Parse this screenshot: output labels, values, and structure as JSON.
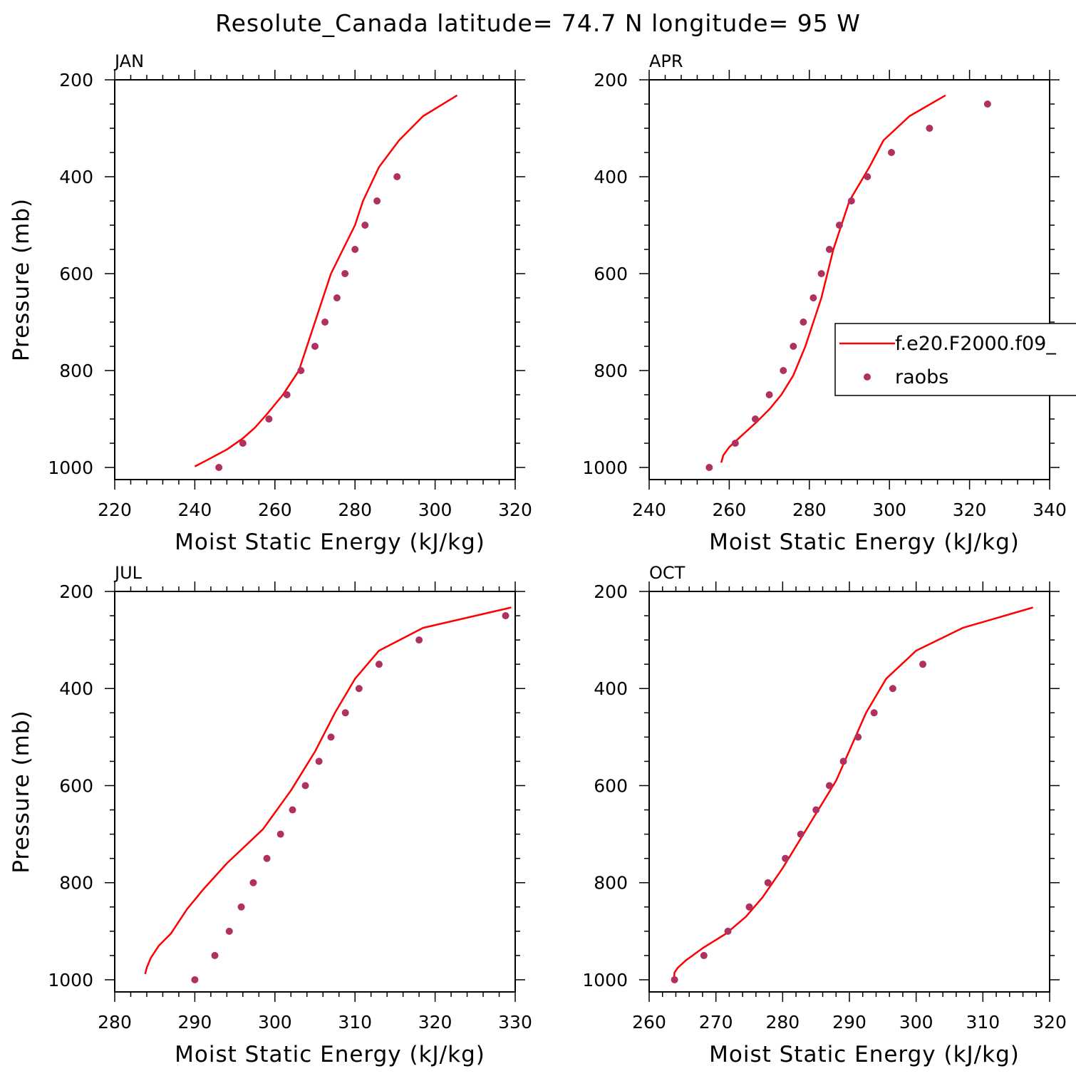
{
  "title": "Resolute_Canada  latitude= 74.7 N longitude= 95 W",
  "colors": {
    "model_line": "#ff0000",
    "obs_marker": "#b03060",
    "axes": "#000000"
  },
  "chart_data": [
    {
      "type": "line",
      "panel_label": "JAN",
      "xlabel": "Moist Static Energy (kJ/kg)",
      "ylabel": "Pressure (mb)",
      "xlim": [
        220,
        320
      ],
      "ylim": [
        1025,
        200
      ],
      "y_reversed": true,
      "x_ticks": [
        220,
        240,
        260,
        280,
        300,
        320
      ],
      "y_ticks": [
        200,
        400,
        600,
        800,
        1000
      ],
      "series": [
        {
          "name": "f.e20.F2000.f09_",
          "kind": "line",
          "x": [
            240,
            243,
            248,
            252,
            255,
            258,
            262,
            266,
            270,
            274,
            277,
            280,
            282,
            286,
            291,
            297,
            305.5
          ],
          "y": [
            998,
            985,
            963,
            940,
            918,
            890,
            850,
            800,
            700,
            600,
            550,
            500,
            450,
            380,
            325,
            275,
            232
          ]
        },
        {
          "name": "raobs",
          "kind": "scatter",
          "x": [
            246,
            252,
            258.5,
            263,
            266.5,
            270,
            272.5,
            275.5,
            277.5,
            280,
            282.5,
            285.5,
            290.5
          ],
          "y": [
            1000,
            950,
            900,
            850,
            800,
            750,
            700,
            650,
            600,
            550,
            500,
            450,
            400
          ]
        }
      ]
    },
    {
      "type": "line",
      "panel_label": "APR",
      "xlabel": "Moist Static Energy (kJ/kg)",
      "ylabel": "",
      "xlim": [
        240,
        340
      ],
      "ylim": [
        1025,
        200
      ],
      "y_reversed": true,
      "x_ticks": [
        240,
        260,
        280,
        300,
        320,
        340
      ],
      "y_ticks": [
        200,
        400,
        600,
        800,
        1000
      ],
      "series": [
        {
          "name": "f.e20.F2000.f09_",
          "kind": "line",
          "x": [
            258,
            258.5,
            260,
            263,
            267,
            270,
            273,
            276,
            279,
            283,
            286,
            290,
            295,
            298.5,
            305,
            314
          ],
          "y": [
            990,
            975,
            958,
            935,
            905,
            880,
            850,
            810,
            750,
            650,
            550,
            450,
            380,
            325,
            275,
            232
          ]
        },
        {
          "name": "raobs",
          "kind": "scatter",
          "x": [
            255,
            261.5,
            266.5,
            270,
            273.5,
            276,
            278.5,
            281,
            283,
            285,
            287.5,
            290.5,
            294.5,
            300.5,
            310,
            324.5
          ],
          "y": [
            1000,
            950,
            900,
            850,
            800,
            750,
            700,
            650,
            600,
            550,
            500,
            450,
            400,
            350,
            300,
            250
          ]
        }
      ]
    },
    {
      "type": "line",
      "panel_label": "JUL",
      "xlabel": "Moist Static Energy (kJ/kg)",
      "ylabel": "Pressure (mb)",
      "xlim": [
        280,
        330
      ],
      "ylim": [
        1025,
        200
      ],
      "y_reversed": true,
      "x_ticks": [
        280,
        290,
        300,
        310,
        320,
        330
      ],
      "y_ticks": [
        200,
        400,
        600,
        800,
        1000
      ],
      "series": [
        {
          "name": "f.e20.F2000.f09_",
          "kind": "line",
          "x": [
            283.8,
            284,
            284.5,
            285.5,
            287,
            289,
            291,
            294,
            298.5,
            302,
            305,
            307.5,
            310,
            313,
            318.5,
            329.5
          ],
          "y": [
            988,
            975,
            955,
            930,
            905,
            855,
            815,
            760,
            690,
            610,
            530,
            450,
            380,
            322,
            275,
            233
          ]
        },
        {
          "name": "raobs",
          "kind": "scatter",
          "x": [
            290,
            292.5,
            294.3,
            295.8,
            297.3,
            299,
            300.7,
            302.2,
            303.8,
            305.5,
            307,
            308.8,
            310.5,
            313,
            318,
            328.8
          ],
          "y": [
            1000,
            950,
            900,
            850,
            800,
            750,
            700,
            650,
            600,
            550,
            500,
            450,
            400,
            350,
            300,
            250
          ]
        }
      ]
    },
    {
      "type": "line",
      "panel_label": "OCT",
      "xlabel": "Moist Static Energy (kJ/kg)",
      "ylabel": "",
      "xlim": [
        260,
        320
      ],
      "ylim": [
        1025,
        200
      ],
      "y_reversed": true,
      "x_ticks": [
        260,
        270,
        280,
        290,
        300,
        310,
        320
      ],
      "y_ticks": [
        200,
        400,
        600,
        800,
        1000
      ],
      "series": [
        {
          "name": "f.e20.F2000.f09_",
          "kind": "line",
          "x": [
            263.7,
            263.8,
            264.3,
            265.5,
            268,
            271.5,
            274.5,
            277,
            280,
            284,
            288,
            292.5,
            295.5,
            300,
            307,
            317.5
          ],
          "y": [
            1000,
            985,
            975,
            960,
            935,
            905,
            870,
            830,
            770,
            680,
            590,
            450,
            380,
            322,
            275,
            233
          ]
        },
        {
          "name": "raobs",
          "kind": "scatter",
          "x": [
            263.8,
            268.2,
            271.8,
            275,
            277.8,
            280.4,
            282.7,
            285,
            287,
            289.1,
            291.3,
            293.7,
            296.5,
            301
          ],
          "y": [
            1000,
            950,
            900,
            850,
            800,
            750,
            700,
            650,
            600,
            550,
            500,
            450,
            400,
            350
          ]
        }
      ]
    }
  ],
  "legend": {
    "placement": "right of APR panel",
    "entries": [
      {
        "label": "f.e20.F2000.f09_",
        "kind": "line"
      },
      {
        "label": "raobs",
        "kind": "marker"
      }
    ]
  }
}
